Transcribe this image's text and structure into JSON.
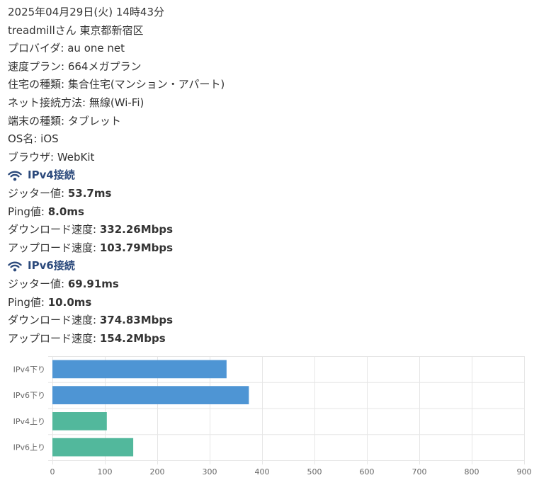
{
  "datetime": "2025年04月29日(火) 14時43分",
  "user_location": "treadmillさん 東京都新宿区",
  "info_rows": [
    {
      "label": "プロバイダ",
      "value": "au one net"
    },
    {
      "label": "速度プラン",
      "value": "664メガプラン"
    },
    {
      "label": "住宅の種類",
      "value": "集合住宅(マンション・アパート)"
    },
    {
      "label": "ネット接続方法",
      "value": "無線(Wi-Fi)"
    },
    {
      "label": "端末の種類",
      "value": "タブレット"
    },
    {
      "label": "OS名",
      "value": "iOS"
    },
    {
      "label": "ブラウザ",
      "value": "WebKit"
    }
  ],
  "ipv4": {
    "title": "IPv4接続",
    "icon": "wifi-icon",
    "jitter_label": "ジッター値",
    "jitter_value": "53.7ms",
    "ping_label": "Ping値",
    "ping_value": "8.0ms",
    "download_label": "ダウンロード速度",
    "download_value": "332.26Mbps",
    "upload_label": "アップロード速度",
    "upload_value": "103.79Mbps"
  },
  "ipv6": {
    "title": "IPv6接続",
    "icon": "wifi-icon",
    "jitter_label": "ジッター値",
    "jitter_value": "69.91ms",
    "ping_label": "Ping値",
    "ping_value": "10.0ms",
    "download_label": "ダウンロード速度",
    "download_value": "374.83Mbps",
    "upload_label": "アップロード速度",
    "upload_value": "154.2Mbps"
  },
  "colors": {
    "section_title": "#2c4a7c",
    "download_bar": "#4e95d4",
    "upload_bar": "#52b89c",
    "grid": "#e6e6e6"
  },
  "chart_data": {
    "type": "bar",
    "orientation": "horizontal",
    "categories": [
      "IPv4下り",
      "IPv6下り",
      "IPv4上り",
      "IPv6上り"
    ],
    "values": [
      332.26,
      374.83,
      103.79,
      154.2
    ],
    "bar_colors": [
      "#4e95d4",
      "#4e95d4",
      "#52b89c",
      "#52b89c"
    ],
    "xlim": [
      0,
      900
    ],
    "xticks": [
      0,
      100,
      200,
      300,
      400,
      500,
      600,
      700,
      800,
      900
    ],
    "grid": true,
    "legend": "none"
  }
}
